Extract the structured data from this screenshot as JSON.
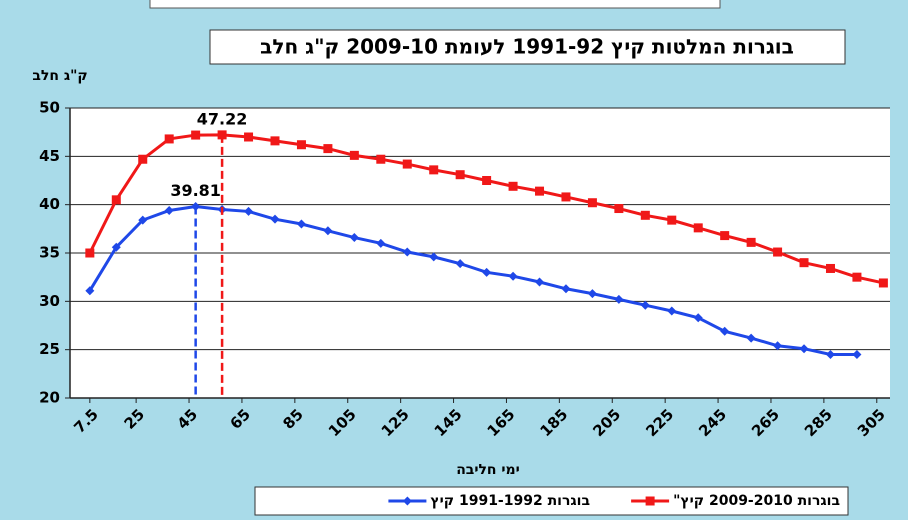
{
  "chart_data": {
    "type": "line",
    "title": "בוגרות המלטות קיץ 1991-92 לעומת 2009-10 ק\"ג חלב",
    "y_label": "ק\"ג חלב",
    "x_label": "ימי חליבה",
    "xlim": [
      0,
      310
    ],
    "ylim": [
      20,
      50
    ],
    "xticks": [
      7.5,
      25,
      45,
      65,
      85,
      105,
      125,
      145,
      165,
      185,
      205,
      225,
      245,
      265,
      285,
      305
    ],
    "yticks": [
      20,
      25,
      30,
      35,
      40,
      45,
      50
    ],
    "grid": true,
    "label_max": true,
    "legend": "bottom",
    "series": [
      {
        "name": "בוגרות 1991-1992 קיץ",
        "color": "#1f48e8",
        "marker": "diamond",
        "x": [
          7.5,
          17.5,
          27.5,
          37.5,
          47.5,
          57.5,
          67.5,
          77.5,
          87.5,
          97.5,
          107.5,
          117.5,
          127.5,
          137.5,
          147.5,
          157.5,
          167.5,
          177.5,
          187.5,
          197.5,
          207.5,
          217.5,
          227.5,
          237.5,
          247.5,
          257.5,
          267.5,
          277.5,
          287.5,
          297.5
        ],
        "values": [
          31.1,
          35.6,
          38.4,
          39.4,
          39.81,
          39.5,
          39.3,
          38.5,
          38.0,
          37.3,
          36.6,
          36.0,
          35.1,
          34.6,
          33.9,
          33.0,
          32.6,
          32.0,
          31.3,
          30.8,
          30.2,
          29.6,
          29.0,
          28.3,
          26.9,
          26.2,
          25.4,
          25.1,
          24.5,
          24.5
        ]
      },
      {
        "name": "בוגרות 2009-2010 קיץ\"",
        "color": "#f01818",
        "marker": "square",
        "x": [
          7.5,
          17.5,
          27.5,
          37.5,
          47.5,
          57.5,
          67.5,
          77.5,
          87.5,
          97.5,
          107.5,
          117.5,
          127.5,
          137.5,
          147.5,
          157.5,
          167.5,
          177.5,
          187.5,
          197.5,
          207.5,
          217.5,
          227.5,
          237.5,
          247.5,
          257.5,
          267.5,
          277.5,
          287.5,
          297.5,
          307.5
        ],
        "values": [
          35,
          40.5,
          44.7,
          46.8,
          47.2,
          47.22,
          47.0,
          46.6,
          46.2,
          45.8,
          45.1,
          44.7,
          44.2,
          43.6,
          43.1,
          42.5,
          41.9,
          41.4,
          40.8,
          40.2,
          39.6,
          38.9,
          38.4,
          37.6,
          36.8,
          36.1,
          35.1,
          34.0,
          33.4,
          32.5,
          31.9
        ]
      }
    ]
  }
}
